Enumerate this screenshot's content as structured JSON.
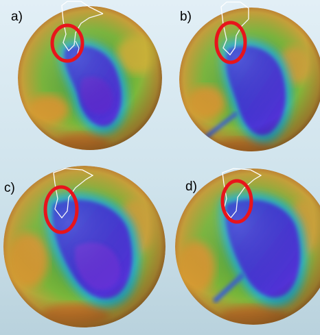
{
  "panels": [
    {
      "label": "a)"
    },
    {
      "label": "b)"
    },
    {
      "label": "c)"
    },
    {
      "label": "d)"
    }
  ],
  "colors": {
    "background": "#d6e8f0",
    "highlight_circle": "#e8141b",
    "ozone_low": "#1e1ab0",
    "ozone_mid": "#1ea6c8",
    "ozone_high": "#e0a030",
    "land_outline": "#ffffff"
  },
  "icons": [
    "globe-ozone-map",
    "red-highlight-circle"
  ]
}
